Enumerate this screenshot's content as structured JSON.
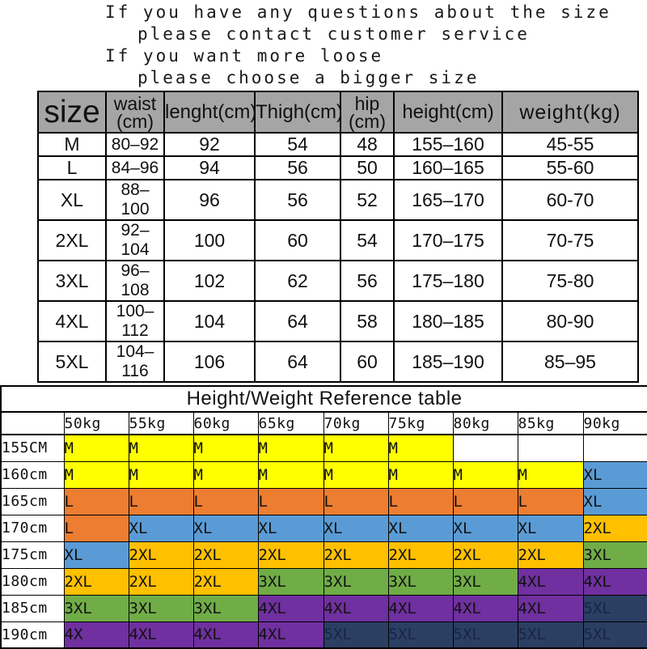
{
  "notice": {
    "lines": [
      "If you have any questions about the size",
      "please contact customer service",
      "If you want more loose",
      "please choose a bigger size"
    ]
  },
  "size_table": {
    "headers": [
      "size",
      "waist\n(cm)",
      "lenght(cm)",
      "Thigh(cm)",
      "hip\n(cm)",
      "height(cm)",
      "weight(kg)"
    ],
    "rows": [
      [
        "M",
        "80–92",
        "92",
        "54",
        "48",
        "155–160",
        "45-55"
      ],
      [
        "L",
        "84–96",
        "94",
        "56",
        "50",
        "160–165",
        "55-60"
      ],
      [
        "XL",
        "88–100",
        "96",
        "56",
        "52",
        "165–170",
        "60-70"
      ],
      [
        "2XL",
        "92–104",
        "100",
        "60",
        "54",
        "170–175",
        "70-75"
      ],
      [
        "3XL",
        "96–108",
        "102",
        "62",
        "56",
        "175–180",
        "75-80"
      ],
      [
        "4XL",
        "100–112",
        "104",
        "64",
        "58",
        "180–185",
        "80-90"
      ],
      [
        "5XL",
        "104–116",
        "106",
        "64",
        "60",
        "185–190",
        "85–95"
      ]
    ]
  },
  "reference_table": {
    "title": "Height/Weight Reference table",
    "weight_headers": [
      "",
      "50kg",
      "55kg",
      "60kg",
      "65kg",
      "70kg",
      "75kg",
      "80kg",
      "85kg",
      "90kg"
    ],
    "rows": [
      {
        "height": "155CM",
        "cells": [
          "M",
          "M",
          "M",
          "M",
          "M",
          "M",
          "",
          "",
          ""
        ]
      },
      {
        "height": "160cm",
        "cells": [
          "M",
          "M",
          "M",
          "M",
          "M",
          "M",
          "M",
          "M",
          "XL"
        ]
      },
      {
        "height": "165cm",
        "cells": [
          "L",
          "L",
          "L",
          "L",
          "L",
          "L",
          "L",
          "L",
          "XL"
        ]
      },
      {
        "height": "170cm",
        "cells": [
          "L",
          "XL",
          "XL",
          "XL",
          "XL",
          "XL",
          "XL",
          "XL",
          "2XL"
        ]
      },
      {
        "height": "175cm",
        "cells": [
          "XL",
          "2XL",
          "2XL",
          "2XL",
          "2XL",
          "2XL",
          "2XL",
          "2XL",
          "3XL"
        ]
      },
      {
        "height": "180cm",
        "cells": [
          "2XL",
          "2XL",
          "2XL",
          "3XL",
          "3XL",
          "3XL",
          "3XL",
          "4XL",
          "4XL"
        ]
      },
      {
        "height": "185cm",
        "cells": [
          "3XL",
          "3XL",
          "3XL",
          "4XL",
          "4XL",
          "4XL",
          "4XL",
          "4XL",
          "5XL"
        ]
      },
      {
        "height": "190cm",
        "cells": [
          "4X",
          "4XL",
          "4XL",
          "4XL",
          "5XL",
          "5XL",
          "5XL",
          "5XL",
          "5XL"
        ]
      }
    ],
    "size_colors": {
      "M": "#ffff00",
      "L": "#ed7d31",
      "XL": "#5b9bd5",
      "2XL": "#ffc000",
      "3XL": "#70ad47",
      "4XL": "#7030a0",
      "4X": "#7030a0",
      "5XL": "#2b3f63",
      "": "#ffffff"
    },
    "header_bg": "#a5a5a5"
  }
}
